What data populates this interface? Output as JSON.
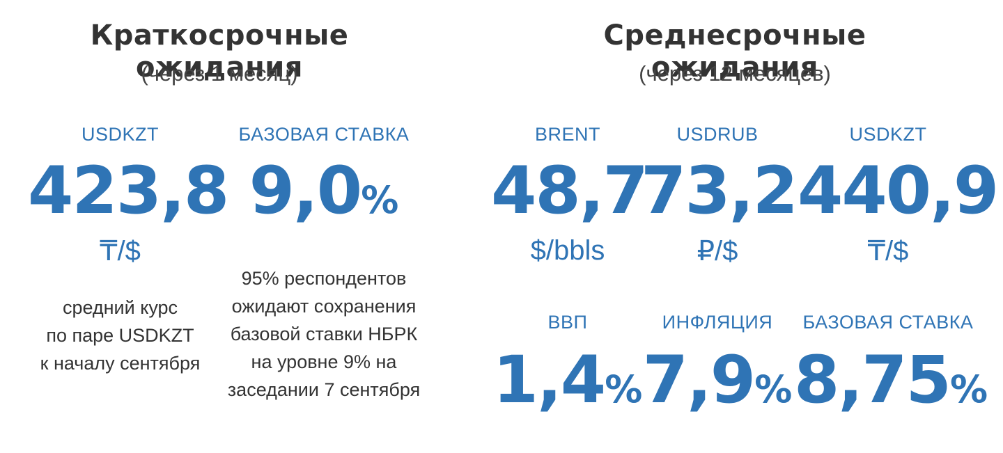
{
  "short_term": {
    "title": "Краткосрочные ожидания",
    "subtitle": "(через 1 месяц)",
    "usdkzt": {
      "label": "USDKZT",
      "value": "423,8",
      "unit": "₸/$",
      "description": [
        "средний курс",
        "по паре USDKZT",
        "к началу сентября"
      ]
    },
    "base_rate": {
      "label": "БАЗОВАЯ СТАВКА",
      "value": "9,0",
      "suffix": "%",
      "description": [
        "95% респондентов",
        "ожидают сохранения",
        "базовой ставки НБРК",
        "на уровне 9% на",
        "заседании 7 сентября"
      ]
    }
  },
  "medium_term": {
    "title": "Среднесрочные ожидания",
    "subtitle": "(через 12 месяцев)",
    "brent": {
      "label": "BRENT",
      "value": "48,7",
      "unit": "$/bbls"
    },
    "usdrub": {
      "label": "USDRUB",
      "value": "73,2",
      "unit": "₽/$"
    },
    "usdkzt": {
      "label": "USDKZT",
      "value": "440,9",
      "unit": "₸/$"
    },
    "gdp": {
      "label": "ВВП",
      "value": "1,4",
      "suffix": "%"
    },
    "inflation": {
      "label": "ИНФЛЯЦИЯ",
      "value": "7,9",
      "suffix": "%"
    },
    "base_rate": {
      "label": "БАЗОВАЯ СТАВКА",
      "value": "8,75",
      "suffix": "%"
    }
  },
  "colors": {
    "accent": "#2f74b5",
    "text": "#333333"
  }
}
